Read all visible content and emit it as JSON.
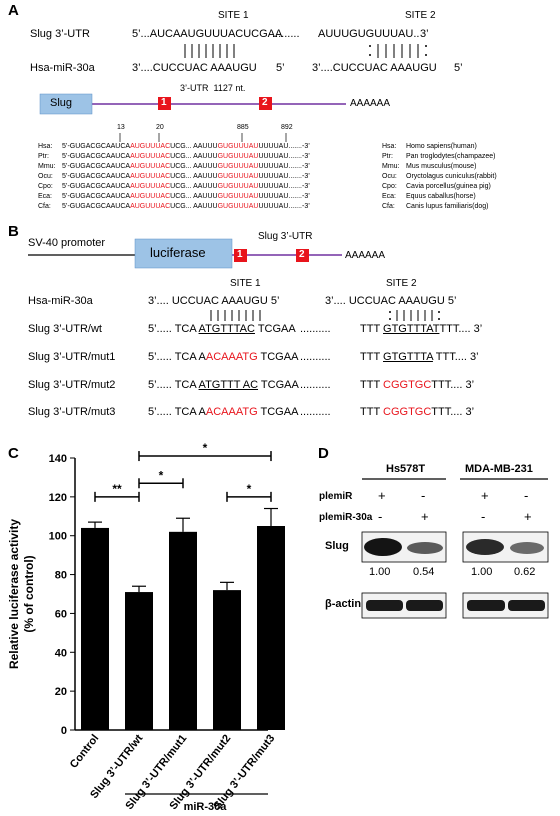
{
  "panelA": {
    "letter": "A",
    "site1": "SITE 1",
    "site2": "SITE 2",
    "slug_label": "Slug 3’-UTR",
    "mir_label": "Hsa-miR-30a",
    "slug_seq_a": "5’...AUCAAUGUUUACUCGAA",
    "slug_dots": ".........",
    "slug_seq_b": "AUUUGUGUUUAU..",
    "slug_end": "3’",
    "mir_seq_a": "3’....CUCCUAC AAAUGU",
    "mir_five_a": "5’",
    "mir_seq_b": "3’....CUCCUAC AAAUGU",
    "mir_five_b": "5’",
    "utr_label": "3’-UTR",
    "utr_len": "1127 nt.",
    "gene_box": "Slug",
    "site_num_1": "1",
    "site_num_2": "2",
    "polyA": "AAAAAA",
    "pos_13": "13",
    "pos_20": "20",
    "pos_885": "885",
    "pos_892": "892",
    "species": [
      {
        "abbr": "Hsa:",
        "pre": "5’-GUGACGCAAUCA",
        "red1": "AUGUUUAC",
        "mid": "UCG... AAUUU",
        "red2": "GUGUUUAU",
        "post": "UUUUAU.......-3’",
        "abbr2": "Hsa:",
        "name": "Homo sapiens(human)"
      },
      {
        "abbr": "Ptr:",
        "pre": "5’-GUGACGCAAUCA",
        "red1": "AUGUUUAC",
        "mid": "UCG... AAUUU",
        "red2": "GUGUUUAU",
        "post": "UUUUAU.......-3’",
        "abbr2": "Ptr:",
        "name": "Pan troglodytes(champazee)"
      },
      {
        "abbr": "Mmu:",
        "pre": "5’-GUGACGCAAUCA",
        "red1": "AUGUUUAC",
        "mid": "UCG... AAUUU",
        "red2": "GUGUUUAU",
        "post": "UUUUAU.......-3’",
        "abbr2": "Mmu:",
        "name": "Mus musculus(mouse)"
      },
      {
        "abbr": "Ocu:",
        "pre": "5’-GUGACGCAAUCA",
        "red1": "AUGUUUAC",
        "mid": "UCG... AAUUU",
        "red2": "GUGUUUAU",
        "post": "UUUUAU.......-3’",
        "abbr2": "Ocu:",
        "name": "Oryctolagus cuniculus(rabbit)"
      },
      {
        "abbr": "Cpo:",
        "pre": "5’-GUGACGCAAUCA",
        "red1": "AUGUUUAC",
        "mid": "UCG... AAUUU",
        "red2": "GUGUUUAU",
        "post": "UUUUAU.......-3’",
        "abbr2": "Cpo:",
        "name": "Cavia porcellus(guinea pig)"
      },
      {
        "abbr": "Eca:",
        "pre": "5’-GUGACGCAAUCA",
        "red1": "AUGUUUAC",
        "mid": "UCG... AAUUU",
        "red2": "GUGUUUAU",
        "post": "UUUUAU.......-3’",
        "abbr2": "Eca:",
        "name": "Equus caballus(horse)"
      },
      {
        "abbr": "Cfa:",
        "pre": "5’-GUGACGCAAUCA",
        "red1": "AUGUUUAC",
        "mid": "UCG... AAUUU",
        "red2": "GUGUUUAU",
        "post": "UUUUAU.......-3’",
        "abbr2": "Cfa:",
        "name": "Canis lupus familiaris(dog)"
      }
    ]
  },
  "panelB": {
    "letter": "B",
    "promoter": "SV-40 promoter",
    "luciferase": "luciferase",
    "utr_label": "Slug 3’-UTR",
    "site_num_1": "1",
    "site_num_2": "2",
    "polyA": "AAAAAA",
    "site1": "SITE 1",
    "site2": "SITE 2",
    "rows": [
      {
        "label": "Hsa-miR-30a",
        "seg1": "3’.... UCCUAC AAAUGU 5’",
        "seg2": "3’.... UCCUAC AAAUGU 5’"
      },
      {
        "label": "Slug 3’-UTR/wt",
        "p1": "5’..... TCA ",
        "m1": "ATGTTTAC",
        "s1": " TCGAA",
        "dots": "..........",
        "p2": "TTT ",
        "m2": "GTGTTTAT",
        "s2": "TTT.... 3’"
      },
      {
        "label": "Slug 3’-UTR/mut1",
        "p1": "5’..... TCA A",
        "m1": "ACAAATG",
        "s1": " TCGAA",
        "dots": "..........",
        "p2": "TTT ",
        "m2": "GTGTTTA",
        "s2": " TTT.... 3’"
      },
      {
        "label": "Slug 3’-UTR/mut2",
        "p1": "5’..... TCA ",
        "m1": "ATGTTT AC",
        "s1": " TCGAA",
        "dots": "..........",
        "p2": "TTT ",
        "m2": "CGGTGC",
        "s2": "TTT.... 3’"
      },
      {
        "label": "Slug 3’-UTR/mut3",
        "p1": "5’..... TCA A",
        "m1": "ACAAATG",
        "s1": " TCGAA",
        "dots": "..........",
        "p2": "TTT ",
        "m2": "CGGTGC",
        "s2": "TTT.... 3’"
      }
    ]
  },
  "panelC": {
    "letter": "C",
    "group_label": "miR-30a",
    "significance": [
      "**",
      "*",
      "*",
      "*"
    ]
  },
  "chart_data": {
    "type": "bar",
    "categories": [
      "Control",
      "Slug 3’-UTR/wt",
      "Slug 3’-UTR/mut1",
      "Slug 3’-UTR/mut2",
      "Slug 3’-UTR/mut3"
    ],
    "values": [
      104,
      71,
      102,
      72,
      105
    ],
    "errors": [
      3,
      3,
      7,
      4,
      9
    ],
    "ylabel_line1": "Relative luciferase activity",
    "ylabel_line2": "(% of control)",
    "ylim": [
      0,
      140
    ],
    "yticks": [
      0,
      20,
      40,
      60,
      80,
      100,
      120,
      140
    ],
    "bar_color": "#000000"
  },
  "panelD": {
    "letter": "D",
    "cell1": "Hs578T",
    "cell2": "MDA-MB-231",
    "row1_label": "plemiR",
    "row2_label": "plemiR-30a",
    "row1_signs": [
      "+",
      "-",
      "+",
      "-"
    ],
    "row2_signs": [
      "-",
      "+",
      "-",
      "+"
    ],
    "slug_label": "Slug",
    "actin_label": "β-actin",
    "quant": [
      "1.00",
      "0.54",
      "1.00",
      "0.62"
    ]
  },
  "colors": {
    "accent_red": "#e8141c",
    "box_blue": "#9dc3e6",
    "line_purple": "#7030a0"
  }
}
